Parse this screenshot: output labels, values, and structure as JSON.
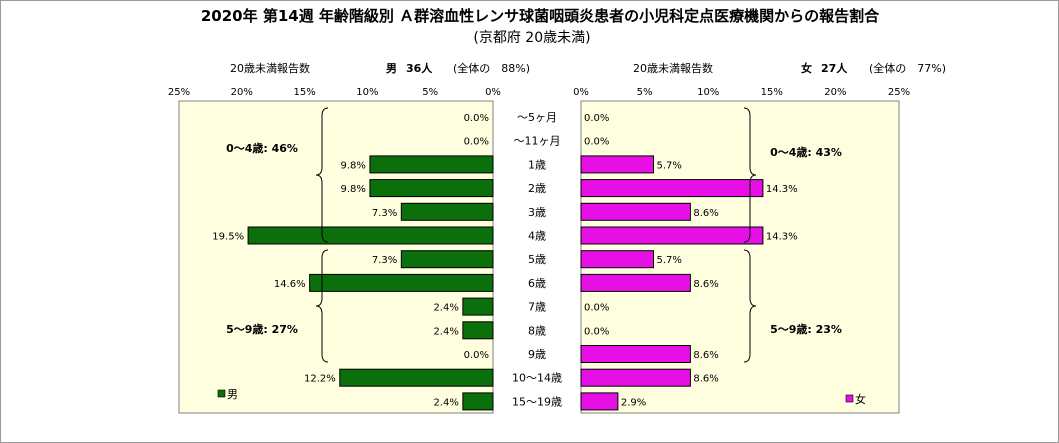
{
  "chart_data": {
    "type": "bar",
    "title": "2020年 第14週 年齢階級別 Ａ群溶血性レンサ球菌咽頭炎患者の小児科定点医療機関からの報告割合",
    "subtitle": "(京都府 20歳未満)",
    "categories": [
      "～5ヶ月",
      "～11ヶ月",
      "1歳",
      "2歳",
      "3歳",
      "4歳",
      "5歳",
      "6歳",
      "7歳",
      "8歳",
      "9歳",
      "10～14歳",
      "15～19歳"
    ],
    "series": [
      {
        "name": "男",
        "color": "#0b700b",
        "values": [
          0.0,
          0.0,
          9.8,
          9.8,
          7.3,
          19.5,
          7.3,
          14.6,
          2.4,
          2.4,
          0.0,
          12.2,
          2.4
        ],
        "labels": [
          "0.0%",
          "0.0%",
          "9.8%",
          "9.8%",
          "7.3%",
          "19.5%",
          "7.3%",
          "14.6%",
          "2.4%",
          "2.4%",
          "0.0%",
          "12.2%",
          "2.4%"
        ]
      },
      {
        "name": "女",
        "color": "#e60fe6",
        "values": [
          0.0,
          0.0,
          5.7,
          14.3,
          8.6,
          14.3,
          5.7,
          8.6,
          0.0,
          0.0,
          8.6,
          8.6,
          2.9
        ],
        "labels": [
          "0.0%",
          "0.0%",
          "5.7%",
          "14.3%",
          "8.6%",
          "14.3%",
          "5.7%",
          "8.6%",
          "0.0%",
          "0.0%",
          "8.6%",
          "8.6%",
          "2.9%"
        ]
      }
    ],
    "xlim": [
      0,
      25
    ],
    "xticks_left": [
      "25%",
      "20%",
      "15%",
      "10%",
      "5%",
      "0%"
    ],
    "xticks_right": [
      "0%",
      "5%",
      "10%",
      "15%",
      "20%",
      "25%"
    ],
    "xlabel_left": "20歳未満報告数",
    "xlabel_right": "20歳未満報告数",
    "male_header": {
      "sex": "男",
      "count": "36人",
      "share": "(全体の　88%)"
    },
    "female_header": {
      "sex": "女",
      "count": "27人",
      "share": "(全体の　77%)"
    },
    "group_annotations": {
      "male_0_4": "0～4歳: 46%",
      "male_5_9": "5～9歳: 27%",
      "female_0_4": "0～4歳: 43%",
      "female_5_9": "5～9歳: 23%"
    },
    "legend": {
      "male": "男",
      "female": "女"
    },
    "plot_background": "#ffffe0",
    "grid": false
  }
}
